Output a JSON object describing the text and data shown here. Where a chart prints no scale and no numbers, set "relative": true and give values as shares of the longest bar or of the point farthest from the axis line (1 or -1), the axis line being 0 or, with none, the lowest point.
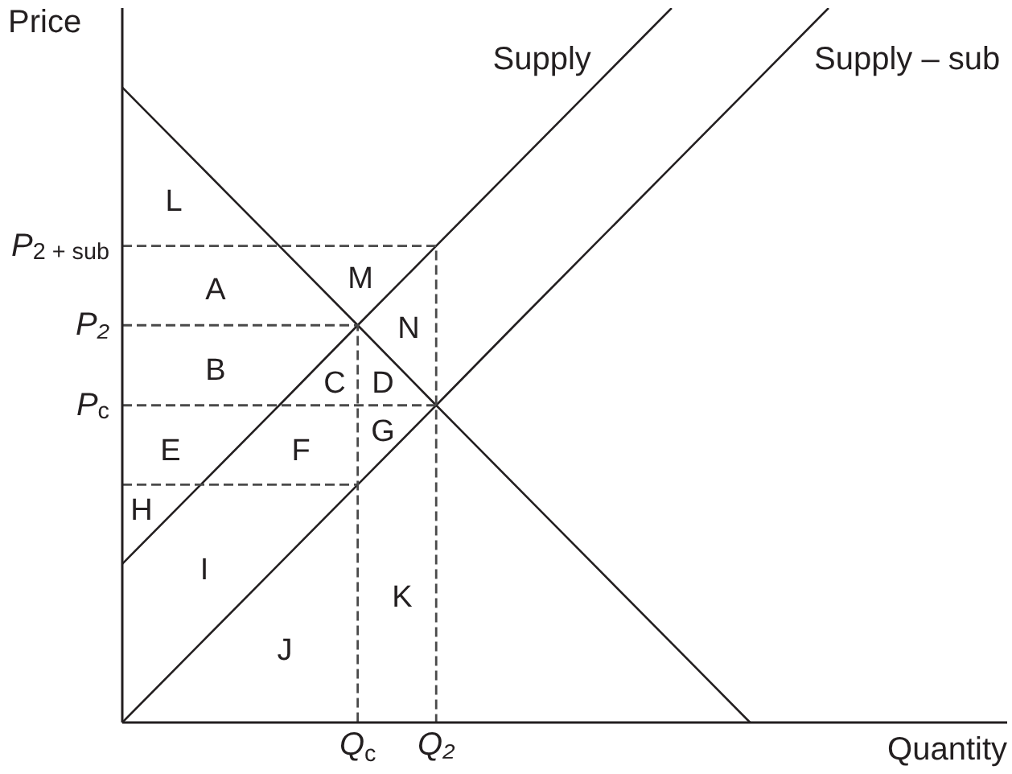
{
  "chart_data": {
    "type": "line",
    "relative": true,
    "xlabel": "Quantity",
    "ylabel": "Price",
    "marker": "none",
    "line_style": "solid",
    "categories": [
      null,
      null,
      null,
      "Q$_{c}$",
      "Q₂",
      null,
      null,
      null,
      null,
      null
    ],
    "series": [
      {
        "name": "Supply",
        "color": "#231f20",
        "values": [
          0.222,
          0.333,
          0.444,
          0.556,
          0.667,
          0.778,
          0.889,
          1,
          null,
          null
        ]
      },
      {
        "name": "Supply – sub",
        "color": "#231f20",
        "values": [
          0,
          0.111,
          0.222,
          0.333,
          0.444,
          0.556,
          0.667,
          0.778,
          0.889,
          1
        ]
      },
      {
        "color": "#231f20",
        "values": [
          0.889,
          0.778,
          0.667,
          0.556,
          0.444,
          0.333,
          0.222,
          0.111,
          0,
          null
        ]
      },
      {
        "name": "P$_{2 + sub}$",
        "type": "step",
        "color": "#4a4a4a",
        "line_style": "dashed",
        "values": [
          0.667,
          0.667,
          0.667,
          0.667,
          0,
          null,
          null,
          null,
          null,
          null
        ]
      },
      {
        "name": "P₂",
        "type": "step",
        "color": "#4a4a4a",
        "line_style": "dashed",
        "values": [
          0.556,
          0.556,
          0.556,
          0,
          null,
          null,
          null,
          null,
          null,
          null
        ]
      },
      {
        "name": "P$_{c}$",
        "color": "#4a4a4a",
        "line_style": "dashed",
        "values": [
          0.444,
          0.444,
          0.444,
          0.444,
          0.444,
          null,
          null,
          null,
          null,
          null
        ]
      },
      {
        "color": "#4a4a4a",
        "line_style": "dashed",
        "values": [
          0.333,
          0.333,
          0.333,
          0.333,
          null,
          null,
          null,
          null,
          null,
          null
        ]
      }
    ],
    "annotations": [
      "L",
      "A",
      "M",
      "N",
      "B",
      "C",
      "D",
      "G",
      "E",
      "F",
      "H",
      "I",
      "K",
      "J"
    ]
  }
}
